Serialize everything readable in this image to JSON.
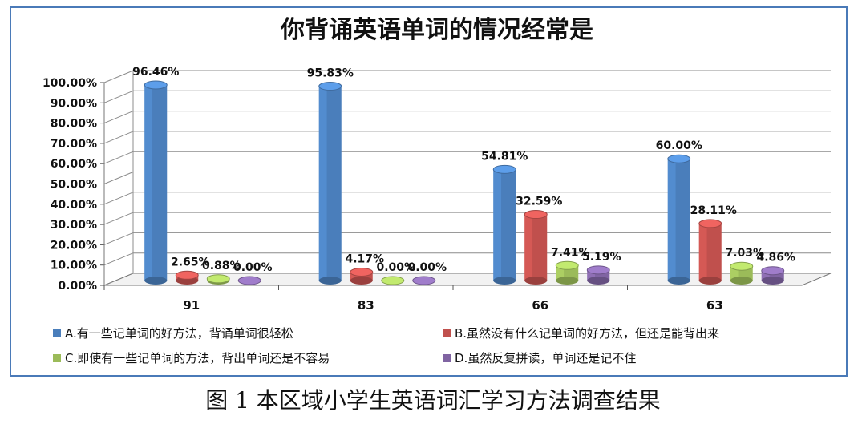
{
  "caption": "图 1 本区域小学生英语词汇学习方法调查结果",
  "chart_data": {
    "type": "bar",
    "title": "你背诵英语单词的情况经常是",
    "categories": [
      "91",
      "83",
      "66",
      "63"
    ],
    "ylim": [
      0,
      100
    ],
    "y_ticks": [
      "0.00%",
      "10.00%",
      "20.00%",
      "30.00%",
      "40.00%",
      "50.00%",
      "60.00%",
      "70.00%",
      "80.00%",
      "90.00%",
      "100.00%"
    ],
    "grid": true,
    "legend_position": "bottom",
    "series": [
      {
        "name": "A.有一些记单词的好方法，背诵单词很轻松",
        "color": "#4a7ebb",
        "values": [
          96.46,
          95.83,
          54.81,
          60.0
        ],
        "labels": [
          "96.46%",
          "95.83%",
          "54.81%",
          "60.00%"
        ]
      },
      {
        "name": "B.虽然没有什么记单词的好方法，但还是能背出来",
        "color": "#c0504d",
        "values": [
          2.65,
          4.17,
          32.59,
          28.11
        ],
        "labels": [
          "2.65%",
          "4.17%",
          "32.59%",
          "28.11%"
        ]
      },
      {
        "name": "C.即使有一些记单词的方法，背出单词还是不容易",
        "color": "#9bbb59",
        "values": [
          0.88,
          0.0,
          7.41,
          7.03
        ],
        "labels": [
          "0.88%",
          "0.00%",
          "7.41%",
          "7.03%"
        ]
      },
      {
        "name": "D.虽然反复拼读，单词还是记不住",
        "color": "#8064a2",
        "values": [
          0.0,
          0.0,
          5.19,
          4.86
        ],
        "labels": [
          "0.00%",
          "0.00%",
          "5.19%",
          "4.86%"
        ]
      }
    ]
  }
}
